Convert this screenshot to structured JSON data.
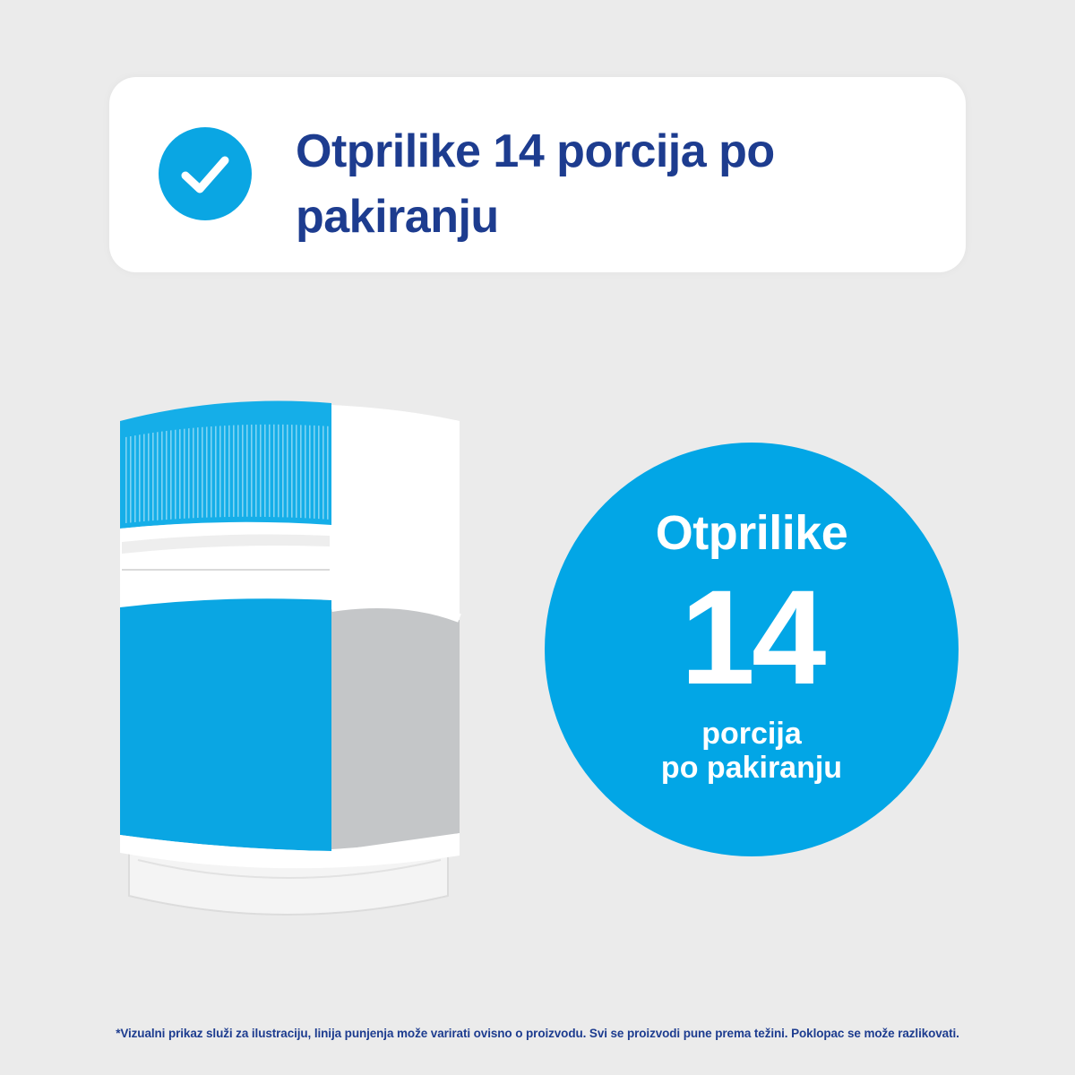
{
  "header": {
    "title": "Otprilike 14 porcija po pakiranju",
    "icon": "check-circle-icon",
    "icon_color": "#0aa6e3",
    "title_color": "#1d3c8f"
  },
  "illustration": {
    "icon": "product-jar-icon",
    "label_color": "#0aa6e3",
    "fill_color": "#c4c6c8"
  },
  "badge": {
    "top_text": "Otprilike",
    "number": "14",
    "bottom_line1": "porcija",
    "bottom_line2": "po pakiranju",
    "color": "#02a6e6"
  },
  "footer": {
    "disclaimer": "*Vizualni prikaz služi za ilustraciju, linija punjenja može varirati ovisno o proizvodu. Svi se proizvodi pune prema težini. Poklopac se može razlikovati."
  }
}
